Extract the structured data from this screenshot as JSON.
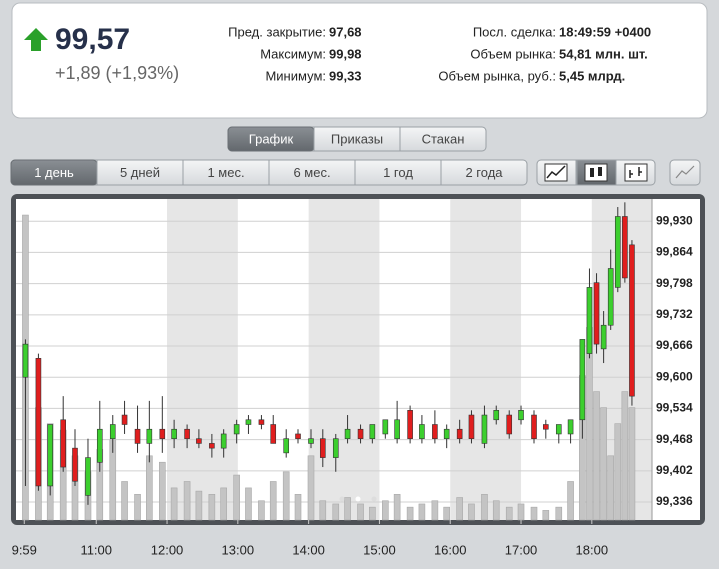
{
  "quote": {
    "price": "99,57",
    "change": "+1,89 (+1,93%)",
    "stats": [
      {
        "label": "Пред. закрытие:",
        "value": "97,68"
      },
      {
        "label": "Максимум:",
        "value": "99,98"
      },
      {
        "label": "Минимум:",
        "value": "99,33"
      },
      {
        "label": "Посл. сделка:",
        "value": "18:49:59 +0400"
      },
      {
        "label": "Объем рынка:",
        "value": "54,81 млн. шт."
      },
      {
        "label": "Объем рынка, руб.:",
        "value": "5,45 млрд."
      }
    ]
  },
  "tabs": [
    "График",
    "Приказы",
    "Стакан"
  ],
  "periods": [
    "1 день",
    "5 дней",
    "1 мес.",
    "6 мес.",
    "1 год",
    "2 года"
  ],
  "chart_data": {
    "type": "candlestick",
    "up_color": "#3ccf2e",
    "down_color": "#e01e1e",
    "volume_color": "#c4c4c4",
    "x": [
      600,
      611,
      621,
      632,
      642,
      653,
      663,
      674,
      684,
      695,
      705,
      716,
      726,
      737,
      747,
      758,
      768,
      779,
      789,
      800,
      810,
      821,
      831,
      842,
      852,
      863,
      873,
      884,
      894,
      905,
      915,
      926,
      936,
      947,
      957,
      968,
      978,
      989,
      999,
      1010,
      1020,
      1031,
      1041,
      1052,
      1062,
      1072,
      1078,
      1084,
      1090,
      1096,
      1102,
      1108,
      1114
    ],
    "open": [
      99.6,
      99.64,
      99.37,
      99.51,
      99.45,
      99.35,
      99.42,
      99.47,
      99.52,
      99.49,
      99.46,
      99.49,
      99.47,
      99.49,
      99.47,
      99.46,
      99.45,
      99.48,
      99.5,
      99.51,
      99.5,
      99.44,
      99.48,
      99.46,
      99.47,
      99.43,
      99.47,
      99.49,
      99.47,
      99.48,
      99.47,
      99.53,
      99.47,
      99.5,
      99.47,
      99.49,
      99.52,
      99.46,
      99.51,
      99.52,
      99.51,
      99.52,
      99.5,
      99.48,
      99.48,
      99.51,
      99.65,
      99.8,
      99.66,
      99.71,
      99.79,
      99.94,
      99.88
    ],
    "high": [
      99.68,
      99.65,
      99.5,
      99.56,
      99.49,
      99.47,
      99.55,
      99.52,
      99.55,
      99.54,
      99.55,
      99.56,
      99.51,
      99.5,
      99.49,
      99.48,
      99.49,
      99.51,
      99.52,
      99.52,
      99.52,
      99.49,
      99.49,
      99.49,
      99.49,
      99.48,
      99.52,
      99.5,
      99.5,
      99.51,
      99.55,
      99.54,
      99.52,
      99.53,
      99.5,
      99.51,
      99.53,
      99.54,
      99.54,
      99.53,
      99.54,
      99.53,
      99.51,
      99.5,
      99.51,
      99.68,
      99.83,
      99.82,
      99.74,
      99.87,
      99.96,
      99.97,
      99.89
    ],
    "low": [
      99.37,
      99.36,
      99.35,
      99.4,
      99.37,
      99.33,
      99.4,
      99.44,
      99.48,
      99.44,
      99.42,
      99.44,
      99.45,
      99.45,
      99.45,
      99.43,
      99.43,
      99.46,
      99.48,
      99.49,
      99.46,
      99.43,
      99.46,
      99.45,
      99.41,
      99.4,
      99.46,
      99.46,
      99.46,
      99.47,
      99.46,
      99.46,
      99.46,
      99.46,
      99.45,
      99.46,
      99.46,
      99.45,
      99.5,
      99.47,
      99.5,
      99.46,
      99.47,
      99.46,
      99.46,
      99.47,
      99.64,
      99.65,
      99.63,
      99.7,
      99.78,
      99.8,
      99.54
    ],
    "close": [
      99.67,
      99.37,
      99.5,
      99.41,
      99.38,
      99.43,
      99.49,
      99.5,
      99.5,
      99.46,
      99.49,
      99.47,
      99.49,
      99.47,
      99.46,
      99.45,
      99.48,
      99.5,
      99.51,
      99.5,
      99.46,
      99.47,
      99.47,
      99.47,
      99.43,
      99.47,
      99.49,
      99.47,
      99.5,
      99.51,
      99.51,
      99.47,
      99.5,
      99.47,
      99.49,
      99.47,
      99.47,
      99.52,
      99.53,
      99.48,
      99.53,
      99.47,
      99.49,
      99.5,
      99.51,
      99.68,
      99.79,
      99.67,
      99.71,
      99.83,
      99.94,
      99.81,
      99.56
    ],
    "volume": [
      95,
      35,
      30,
      28,
      20,
      15,
      22,
      25,
      12,
      8,
      20,
      18,
      10,
      12,
      9,
      8,
      10,
      14,
      10,
      6,
      12,
      15,
      8,
      20,
      6,
      5,
      7,
      5,
      4,
      6,
      8,
      4,
      5,
      6,
      4,
      7,
      5,
      8,
      6,
      4,
      5,
      4,
      3,
      4,
      12,
      45,
      60,
      40,
      35,
      20,
      30,
      40,
      35
    ],
    "xlim": [
      592,
      1131
    ],
    "xticks": [
      {
        "value": 599,
        "label": "9:59"
      },
      {
        "value": 660,
        "label": "11:00"
      },
      {
        "value": 720,
        "label": "12:00"
      },
      {
        "value": 780,
        "label": "13:00"
      },
      {
        "value": 840,
        "label": "14:00"
      },
      {
        "value": 900,
        "label": "15:00"
      },
      {
        "value": 960,
        "label": "16:00"
      },
      {
        "value": 1020,
        "label": "17:00"
      },
      {
        "value": 1080,
        "label": "18:00"
      }
    ],
    "ylim": [
      99.298,
      99.977
    ],
    "yticks": [
      {
        "value": 99.93,
        "label": "99,930"
      },
      {
        "value": 99.864,
        "label": "99,864"
      },
      {
        "value": 99.798,
        "label": "99,798"
      },
      {
        "value": 99.732,
        "label": "99,732"
      },
      {
        "value": 99.666,
        "label": "99,666"
      },
      {
        "value": 99.6,
        "label": "99,600"
      },
      {
        "value": 99.534,
        "label": "99,534"
      },
      {
        "value": 99.468,
        "label": "99,468"
      },
      {
        "value": 99.402,
        "label": "99,402"
      },
      {
        "value": 99.336,
        "label": "99,336"
      }
    ],
    "y2lim": [
      0,
      100
    ],
    "grid": true
  }
}
